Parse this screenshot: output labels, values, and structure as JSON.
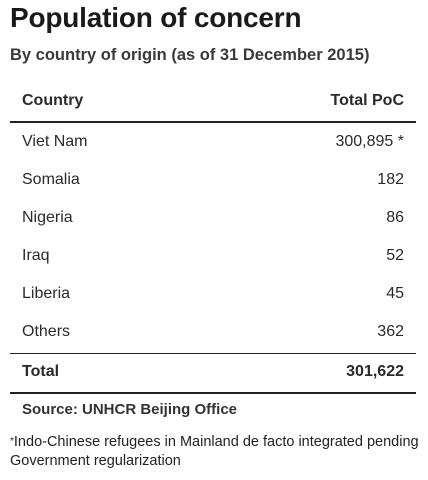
{
  "title": "Population of concern",
  "subtitle": "By country of origin (as of 31 December 2015)",
  "table": {
    "headers": {
      "country": "Country",
      "total": "Total PoC"
    },
    "rows": [
      {
        "country": "Viet Nam",
        "total": "300,895 *"
      },
      {
        "country": "Somalia",
        "total": "182"
      },
      {
        "country": "Nigeria",
        "total": "86"
      },
      {
        "country": "Iraq",
        "total": "52"
      },
      {
        "country": "Liberia",
        "total": "45"
      },
      {
        "country": "Others",
        "total": "362"
      }
    ],
    "total": {
      "label": "Total",
      "value": "301,622"
    }
  },
  "source": "Source: UNHCR Beijing Office",
  "footnote": {
    "marker": "*",
    "text": "Indo-Chinese refugees in Mainland de facto integrated pending Government regularization"
  }
}
